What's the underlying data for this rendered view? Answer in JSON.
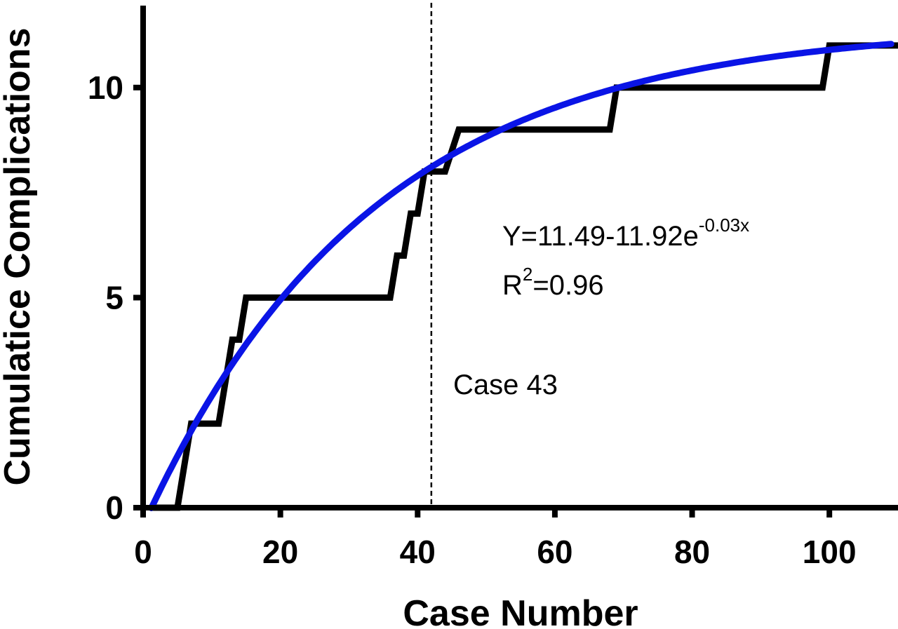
{
  "chart_data": {
    "type": "line",
    "title": "",
    "xlabel": "Case Number",
    "ylabel": "Cumulatice Complications",
    "xlim": [
      0,
      110
    ],
    "ylim": [
      0,
      12
    ],
    "x_ticks": [
      0,
      20,
      40,
      60,
      80,
      100
    ],
    "y_ticks": [
      0,
      5,
      10
    ],
    "x_tick_labels": [
      "0",
      "20",
      "40",
      "60",
      "80",
      "100"
    ],
    "y_tick_labels": [
      "0",
      "5",
      "10"
    ],
    "grid": false,
    "colors": {
      "observed": "#000000",
      "fit": "#0a14e6"
    },
    "series": [
      {
        "style": "step",
        "points": [
          [
            1,
            0
          ],
          [
            5,
            0
          ],
          [
            7,
            2
          ],
          [
            11,
            2
          ],
          [
            13,
            4
          ],
          [
            14,
            4
          ],
          [
            15,
            5
          ],
          [
            36,
            5
          ],
          [
            37,
            6
          ],
          [
            38,
            6
          ],
          [
            39,
            7
          ],
          [
            40,
            7
          ],
          [
            41,
            8
          ],
          [
            44,
            8
          ],
          [
            46,
            9
          ],
          [
            68,
            9
          ],
          [
            69,
            10
          ],
          [
            99,
            10
          ],
          [
            100,
            11
          ],
          [
            110,
            11
          ]
        ]
      },
      {
        "style": "fit",
        "equation": {
          "a": 11.49,
          "b": 11.92,
          "k": 0.03
        },
        "x_range": [
          1.2,
          109
        ]
      }
    ],
    "reference_line": {
      "x": 42,
      "label": "Case 43",
      "style": "dashed"
    },
    "annotations": {
      "equation_main": "Y=11.49-11.92e",
      "equation_exponent": "-0.03x",
      "r2_prefix": "R",
      "r2_exponent": "2",
      "r2_value": "=0.96"
    }
  }
}
